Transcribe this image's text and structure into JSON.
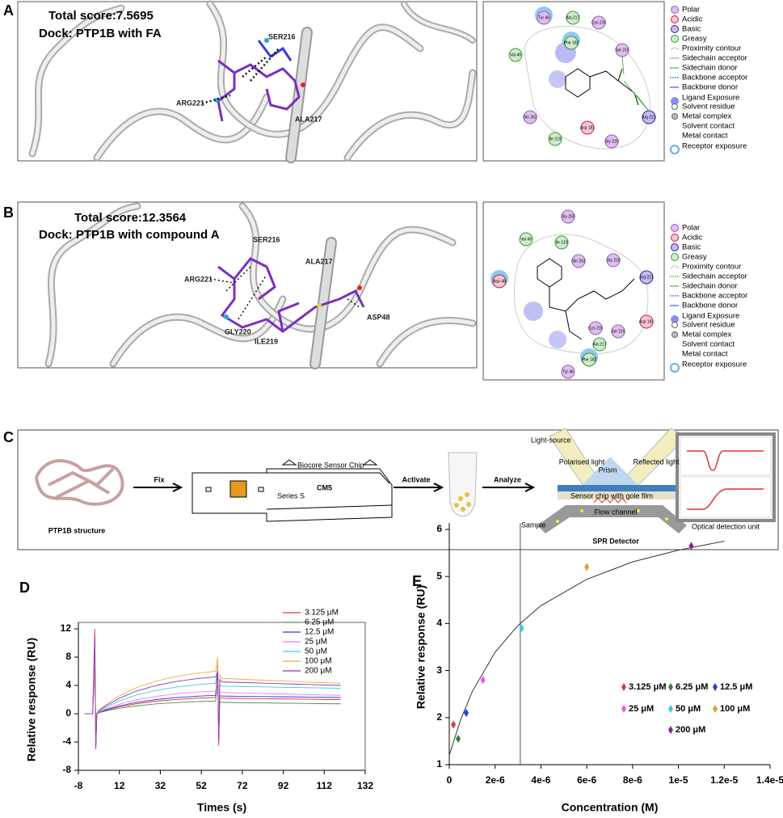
{
  "panels": {
    "legend": [
      "Polar",
      "Acidic",
      "Basic",
      "Greasy",
      "Proximity contour",
      "Sidechain acceptor",
      "Sidechain donor",
      "Backbone acceptor",
      "Backbone donor",
      "Ligand Exposure",
      "Solvent residue",
      "Metal complex",
      "Solvent contact",
      "Metal contact",
      "Receptor exposure"
    ],
    "A": {
      "letter": "A",
      "score": "Total score:7.5695",
      "dock": "Dock: PTP1B with FA",
      "residues": [
        "SER216",
        "ARG221",
        "ALA217"
      ],
      "nodes": [
        {
          "label": "Tyr 46",
          "color": "#dcc0ec"
        },
        {
          "label": "Ala 217",
          "color": "#cdeccd"
        },
        {
          "label": "Cys 215",
          "color": "#dcc0ec"
        },
        {
          "label": "Val 49",
          "color": "#cdeccd"
        },
        {
          "label": "Phe 182",
          "color": "#cdeccd"
        },
        {
          "label": "Ser 216",
          "color": "#dcc0ec"
        },
        {
          "label": "Gln 262",
          "color": "#dcc0ec"
        },
        {
          "label": "Asp 181",
          "color": "#f4c6d6"
        },
        {
          "label": "Ile 219",
          "color": "#cdeccd"
        },
        {
          "label": "Gly 220",
          "color": "#dcc0ec"
        },
        {
          "label": "Arg 221",
          "color": "#c8b8ec"
        }
      ]
    },
    "B": {
      "letter": "B",
      "score": "Total score:12.3564",
      "dock": "Dock: PTP1B with compound A",
      "residues": [
        "SER216",
        "ALA217",
        "ARG221",
        "GLY220",
        "ILE219",
        "ASP48"
      ],
      "nodes": [
        {
          "label": "Gly 259",
          "color": "#dcc0ec"
        },
        {
          "label": "Val 49",
          "color": "#cdeccd"
        },
        {
          "label": "Ile 219",
          "color": "#cdeccd"
        },
        {
          "label": "Gln 262",
          "color": "#dcc0ec"
        },
        {
          "label": "Gly 220",
          "color": "#dcc0ec"
        },
        {
          "label": "Asp 48",
          "color": "#f4c6d6"
        },
        {
          "label": "Arg 221",
          "color": "#c8b8ec"
        },
        {
          "label": "Cys 215",
          "color": "#dcc0ec"
        },
        {
          "label": "Ser 216",
          "color": "#dcc0ec"
        },
        {
          "label": "Asp 181",
          "color": "#f4c6d6"
        },
        {
          "label": "Ala 217",
          "color": "#cdeccd"
        },
        {
          "label": "Phe 182",
          "color": "#cdeccd"
        },
        {
          "label": "Tyr 46",
          "color": "#dcc0ec"
        }
      ]
    },
    "C": {
      "letter": "C",
      "labels": [
        "PTP1B structure",
        "Fix",
        "Biocore Sensor Chip",
        "CM5",
        "Series S",
        "Activate",
        "Analyze",
        "Light-source",
        "Polarised light",
        "Prism",
        "Reflected light",
        "Sensor chip with gole film",
        "Flow channel",
        "Sample",
        "SPR Detector",
        "Optical detection unit"
      ]
    }
  },
  "chart_data": [
    {
      "type": "line",
      "panel": "D",
      "ylabel": "Relative response (RU)",
      "xlabel": "Times (s)",
      "xlim": [
        -8,
        132
      ],
      "xticks": [
        -8,
        12,
        32,
        52,
        72,
        92,
        112,
        132
      ],
      "ylim": [
        -8,
        12
      ],
      "yticks": [
        -8,
        -4,
        0,
        4,
        8,
        12
      ],
      "x": [
        -5,
        -1,
        0,
        0.5,
        1,
        2,
        6,
        12,
        20,
        30,
        40,
        50,
        59,
        60,
        60.5,
        61,
        62,
        70,
        80,
        90,
        100,
        110,
        120
      ],
      "series": [
        {
          "name": "3.125  μM",
          "color": "#e8323c",
          "values": [
            0,
            0,
            12,
            -5,
            0,
            0.2,
            0.54,
            0.97,
            1.4,
            1.77,
            2.02,
            2.2,
            2.3,
            7,
            -4.5,
            2.25,
            2.2,
            2.17,
            2.13,
            2.1,
            2.06,
            2.03,
            2.0
          ]
        },
        {
          "name": "6.25  μM",
          "color": "#4f8f4f",
          "values": [
            0,
            0,
            8,
            -4,
            0,
            0.15,
            0.42,
            0.76,
            1.1,
            1.39,
            1.58,
            1.72,
            1.8,
            5,
            -3,
            1.7,
            1.6,
            1.57,
            1.54,
            1.5,
            1.47,
            1.43,
            1.4
          ]
        },
        {
          "name": "12.5  μM",
          "color": "#2a3ad8",
          "values": [
            0,
            0,
            10,
            -4.5,
            0,
            0.22,
            0.61,
            1.09,
            1.59,
            2.0,
            2.29,
            2.48,
            2.6,
            6,
            -3.5,
            2.55,
            2.5,
            2.47,
            2.44,
            2.4,
            2.37,
            2.33,
            2.3
          ]
        },
        {
          "name": "25  μM",
          "color": "#f07cf0",
          "values": [
            0,
            0,
            6,
            -3,
            0,
            0.27,
            0.75,
            1.34,
            1.95,
            2.46,
            2.82,
            3.06,
            3.2,
            5,
            -2,
            3.1,
            3.0,
            2.94,
            2.87,
            2.8,
            2.74,
            2.67,
            2.6
          ]
        },
        {
          "name": "50  μM",
          "color": "#38d0d8",
          "values": [
            0,
            0,
            9,
            -4,
            0,
            0.37,
            1.01,
            1.81,
            2.62,
            3.31,
            3.78,
            4.11,
            4.3,
            6.5,
            -3,
            4.1,
            3.9,
            3.86,
            3.81,
            3.75,
            3.7,
            3.65,
            3.6
          ]
        },
        {
          "name": "100  μM",
          "color": "#e8b040",
          "values": [
            0,
            0,
            7,
            -3.5,
            0,
            0.51,
            1.41,
            2.52,
            3.66,
            4.62,
            5.28,
            5.73,
            6.0,
            8,
            -2,
            5.5,
            5.0,
            4.9,
            4.77,
            4.65,
            4.53,
            4.41,
            4.3
          ]
        },
        {
          "name": "200  μM",
          "color": "#9a30c0",
          "values": [
            0,
            0,
            11,
            -5,
            0,
            0.44,
            1.22,
            2.18,
            3.17,
            4.0,
            4.58,
            4.97,
            5.2,
            6,
            -4,
            4.85,
            4.5,
            4.43,
            4.35,
            4.25,
            4.17,
            4.08,
            4.0
          ]
        }
      ]
    },
    {
      "type": "scatter",
      "panel": "E",
      "ylabel": "Relative response (RU)",
      "xlabel": "Concentration (M)",
      "xlim": [
        0,
        1.4e-05
      ],
      "xticks": [
        0,
        {
          "value": 2e-06,
          "label": "2e-6"
        },
        {
          "value": 4e-06,
          "label": "4e-6"
        },
        {
          "value": 6e-06,
          "label": "6e-6"
        },
        {
          "value": 8e-06,
          "label": "8e-6"
        },
        {
          "value": 1e-05,
          "label": "1e-5"
        },
        {
          "value": 1.2e-05,
          "label": "1.2e-5"
        },
        {
          "value": 1.4e-05,
          "label": "1.4e-5"
        }
      ],
      "ylim": [
        1,
        6
      ],
      "yticks": [
        1,
        2,
        3,
        4,
        5,
        6
      ],
      "reference_x": 3.1e-06,
      "fit": {
        "x": [
          0,
          5e-07,
          1e-06,
          2e-06,
          3e-06,
          4e-06,
          6e-06,
          8e-06,
          1e-05,
          1.2e-05
        ],
        "values": [
          1.2,
          1.96,
          2.55,
          3.39,
          3.96,
          4.38,
          4.94,
          5.31,
          5.56,
          5.75
        ]
      },
      "series": [
        {
          "name": "3.125 μM",
          "color": "#e8323c",
          "x": [
            1.8e-07
          ],
          "values": [
            1.85
          ]
        },
        {
          "name": "6.25 μM",
          "color": "#3a7a3a",
          "x": [
            3.9e-07
          ],
          "values": [
            1.55
          ]
        },
        {
          "name": "12.5 μM",
          "color": "#2a3ad8",
          "x": [
            7.4e-07
          ],
          "values": [
            2.1
          ]
        },
        {
          "name": "25 μM",
          "color": "#f050f0",
          "x": [
            1.47e-06
          ],
          "values": [
            2.8
          ]
        },
        {
          "name": "50 μM",
          "color": "#38d0d8",
          "x": [
            3.16e-06
          ],
          "values": [
            3.9
          ]
        },
        {
          "name": "100 μM",
          "color": "#e0a030",
          "x": [
            6e-06
          ],
          "values": [
            5.2
          ]
        },
        {
          "name": "200 μM",
          "color": "#8a2090",
          "x": [
            1.056e-05
          ],
          "values": [
            5.65
          ]
        }
      ]
    }
  ]
}
